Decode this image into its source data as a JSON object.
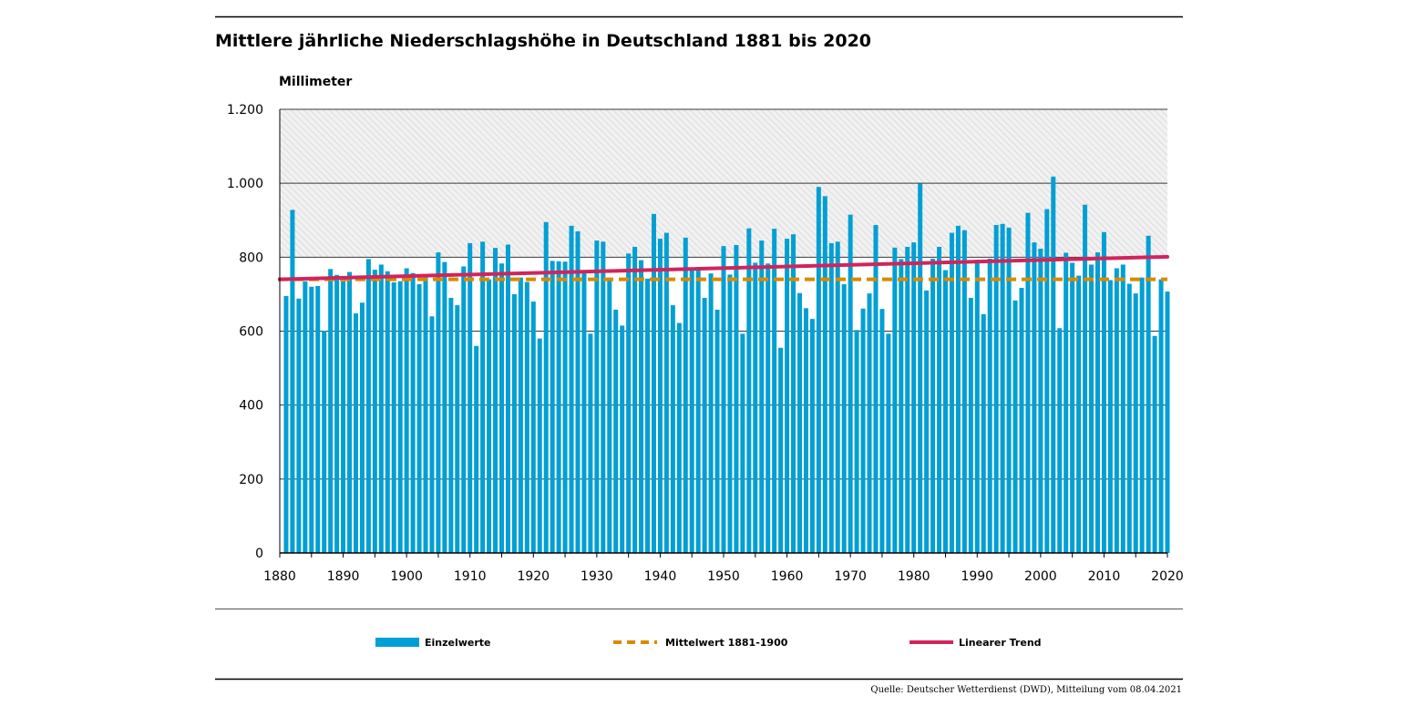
{
  "chart_data": {
    "type": "bar",
    "title": "Mittlere jährliche Niederschlagshöhe in Deutschland 1881 bis 2020",
    "ylabel": "Millimeter",
    "xlabel": "",
    "ylim": [
      0,
      1200
    ],
    "xlim": [
      1880,
      2020
    ],
    "y_ticks": [
      0,
      200,
      400,
      600,
      800,
      1000,
      1200
    ],
    "y_tick_labels": [
      "0",
      "200",
      "400",
      "600",
      "800",
      "1.000",
      "1.200"
    ],
    "x_ticks": [
      1880,
      1890,
      1900,
      1910,
      1920,
      1930,
      1940,
      1950,
      1960,
      1970,
      1980,
      1990,
      2000,
      2010,
      2020
    ],
    "x_tick_labels": [
      "1880",
      "1890",
      "1900",
      "1910",
      "1920",
      "1930",
      "1940",
      "1950",
      "1960",
      "1970",
      "1980",
      "1990",
      "2000",
      "2010",
      "2020"
    ],
    "shaded_band": [
      800,
      1200
    ],
    "grid": true,
    "years": [
      1881,
      1882,
      1883,
      1884,
      1885,
      1886,
      1887,
      1888,
      1889,
      1890,
      1891,
      1892,
      1893,
      1894,
      1895,
      1896,
      1897,
      1898,
      1899,
      1900,
      1901,
      1902,
      1903,
      1904,
      1905,
      1906,
      1907,
      1908,
      1909,
      1910,
      1911,
      1912,
      1913,
      1914,
      1915,
      1916,
      1917,
      1918,
      1919,
      1920,
      1921,
      1922,
      1923,
      1924,
      1925,
      1926,
      1927,
      1928,
      1929,
      1930,
      1931,
      1932,
      1933,
      1934,
      1935,
      1936,
      1937,
      1938,
      1939,
      1940,
      1941,
      1942,
      1943,
      1944,
      1945,
      1946,
      1947,
      1948,
      1949,
      1950,
      1951,
      1952,
      1953,
      1954,
      1955,
      1956,
      1957,
      1958,
      1959,
      1960,
      1961,
      1962,
      1963,
      1964,
      1965,
      1966,
      1967,
      1968,
      1969,
      1970,
      1971,
      1972,
      1973,
      1974,
      1975,
      1976,
      1977,
      1978,
      1979,
      1980,
      1981,
      1982,
      1983,
      1984,
      1985,
      1986,
      1987,
      1988,
      1989,
      1990,
      1991,
      1992,
      1993,
      1994,
      1995,
      1996,
      1997,
      1998,
      1999,
      2000,
      2001,
      2002,
      2003,
      2004,
      2005,
      2006,
      2007,
      2008,
      2009,
      2010,
      2011,
      2012,
      2013,
      2014,
      2015,
      2016,
      2017,
      2018,
      2019,
      2020
    ],
    "series": [
      {
        "name": "Einzelwerte",
        "type": "bar",
        "color": "#009fd4",
        "values": [
          695,
          928,
          688,
          735,
          720,
          722,
          601,
          768,
          752,
          735,
          760,
          648,
          677,
          795,
          766,
          780,
          762,
          732,
          735,
          770,
          757,
          727,
          753,
          640,
          813,
          787,
          690,
          670,
          775,
          838,
          560,
          842,
          740,
          825,
          783,
          834,
          700,
          745,
          733,
          680,
          580,
          895,
          790,
          789,
          788,
          885,
          870,
          765,
          593,
          845,
          842,
          740,
          658,
          615,
          810,
          828,
          792,
          742,
          917,
          850,
          866,
          670,
          622,
          853,
          765,
          768,
          690,
          756,
          658,
          830,
          753,
          833,
          593,
          878,
          785,
          845,
          783,
          877,
          555,
          850,
          862,
          703,
          662,
          633,
          990,
          965,
          838,
          842,
          727,
          915,
          603,
          661,
          702,
          887,
          660,
          593,
          826,
          795,
          828,
          840,
          999,
          710,
          796,
          828,
          765,
          866,
          885,
          873,
          690,
          793,
          646,
          796,
          887,
          890,
          880,
          683,
          717,
          920,
          840,
          823,
          930,
          1018,
          608,
          812,
          785,
          750,
          942,
          780,
          813,
          868,
          738,
          770,
          780,
          728,
          702,
          745,
          858,
          587,
          740,
          707
        ]
      },
      {
        "name": "Mittelwert 1881-1900",
        "type": "hline",
        "color": "#d98a00",
        "value": 740,
        "style": "dashed"
      },
      {
        "name": "Linearer Trend",
        "type": "line",
        "color": "#d1245b",
        "x": [
          1880,
          2020
        ],
        "y": [
          740,
          801
        ]
      }
    ],
    "legend": [
      {
        "label": "Einzelwerte",
        "marker": "bar",
        "color": "#009fd4"
      },
      {
        "label": "Mittelwert 1881-1900",
        "marker": "dashed-line",
        "color": "#d98a00"
      },
      {
        "label": "Linearer Trend",
        "marker": "line",
        "color": "#d1245b"
      }
    ],
    "legend_position": "bottom",
    "source": "Quelle: Deutscher Wetterdienst (DWD), Mitteilung vom 08.04.2021"
  }
}
